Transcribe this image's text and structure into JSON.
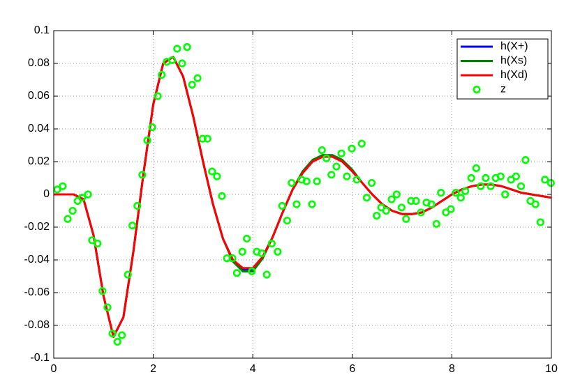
{
  "chart_data": {
    "type": "line",
    "x": [
      0,
      0.2,
      0.4,
      0.6,
      0.8,
      1.0,
      1.2,
      1.4,
      1.6,
      1.8,
      2.0,
      2.2,
      2.4,
      2.6,
      2.8,
      3.0,
      3.2,
      3.4,
      3.6,
      3.8,
      4.0,
      4.2,
      4.4,
      4.6,
      4.8,
      5.0,
      5.2,
      5.4,
      5.6,
      5.8,
      6.0,
      6.2,
      6.4,
      6.6,
      6.8,
      7.0,
      7.2,
      7.4,
      7.6,
      7.8,
      8.0,
      8.2,
      8.4,
      8.6,
      8.8,
      9.0,
      9.2,
      9.4,
      9.6,
      9.8,
      10
    ],
    "series": [
      {
        "name": "h(X+)",
        "color": "#0000ff",
        "values": [
          0,
          0,
          0,
          -0.003,
          -0.025,
          -0.062,
          -0.087,
          -0.075,
          -0.035,
          0.012,
          0.055,
          0.08,
          0.084,
          0.072,
          0.048,
          0.02,
          -0.006,
          -0.027,
          -0.04,
          -0.046,
          -0.046,
          -0.038,
          -0.026,
          -0.011,
          0.003,
          0.013,
          0.02,
          0.023,
          0.023,
          0.02,
          0.014,
          0.007,
          0.0,
          -0.006,
          -0.01,
          -0.012,
          -0.012,
          -0.011,
          -0.008,
          -0.004,
          0.0,
          0.003,
          0.005,
          0.006,
          0.006,
          0.005,
          0.003,
          0.001,
          0.0,
          -0.001,
          -0.002
        ]
      },
      {
        "name": "h(Xs)",
        "color": "#007f00",
        "values": [
          0,
          0,
          0,
          -0.003,
          -0.025,
          -0.062,
          -0.087,
          -0.075,
          -0.035,
          0.012,
          0.055,
          0.08,
          0.084,
          0.072,
          0.048,
          0.02,
          -0.006,
          -0.027,
          -0.041,
          -0.047,
          -0.047,
          -0.039,
          -0.026,
          -0.011,
          0.003,
          0.014,
          0.021,
          0.024,
          0.024,
          0.021,
          0.015,
          0.007,
          0.0,
          -0.006,
          -0.01,
          -0.012,
          -0.012,
          -0.011,
          -0.008,
          -0.004,
          0.0,
          0.003,
          0.005,
          0.006,
          0.006,
          0.005,
          0.003,
          0.001,
          0.0,
          -0.001,
          -0.002
        ]
      },
      {
        "name": "h(Xd)",
        "color": "#ff0000",
        "values": [
          0,
          0,
          0,
          -0.003,
          -0.025,
          -0.062,
          -0.087,
          -0.075,
          -0.035,
          0.012,
          0.055,
          0.08,
          0.084,
          0.072,
          0.048,
          0.02,
          -0.006,
          -0.027,
          -0.04,
          -0.045,
          -0.045,
          -0.038,
          -0.026,
          -0.011,
          0.003,
          0.013,
          0.02,
          0.023,
          0.023,
          0.02,
          0.014,
          0.007,
          0.0,
          -0.006,
          -0.01,
          -0.012,
          -0.012,
          -0.011,
          -0.008,
          -0.004,
          0.0,
          0.003,
          0.005,
          0.006,
          0.006,
          0.005,
          0.003,
          0.001,
          0.0,
          -0.001,
          -0.002
        ]
      },
      {
        "name": "z",
        "color": "#00ff00",
        "type": "scatter",
        "x": [
          0.07,
          0.18,
          0.28,
          0.38,
          0.48,
          0.57,
          0.69,
          0.77,
          0.88,
          0.98,
          1.08,
          1.18,
          1.28,
          1.37,
          1.49,
          1.58,
          1.68,
          1.78,
          1.88,
          1.98,
          2.09,
          2.17,
          2.27,
          2.38,
          2.48,
          2.58,
          2.68,
          2.78,
          2.89,
          2.99,
          3.09,
          3.18,
          3.28,
          3.38,
          3.48,
          3.59,
          3.68,
          3.79,
          3.88,
          3.98,
          4.08,
          4.18,
          4.28,
          4.38,
          4.5,
          4.59,
          4.69,
          4.78,
          4.88,
          4.98,
          5.08,
          5.19,
          5.29,
          5.39,
          5.48,
          5.58,
          5.68,
          5.78,
          5.89,
          5.99,
          6.09,
          6.19,
          6.29,
          6.39,
          6.49,
          6.58,
          6.68,
          6.79,
          6.89,
          6.99,
          7.08,
          7.18,
          7.28,
          7.38,
          7.49,
          7.59,
          7.69,
          7.78,
          7.88,
          7.98,
          8.08,
          8.18,
          8.27,
          8.39,
          8.49,
          8.58,
          8.68,
          8.78,
          8.88,
          8.98,
          9.07,
          9.19,
          9.29,
          9.39,
          9.48,
          9.58,
          9.68,
          9.78,
          9.87,
          9.99
        ],
        "values": [
          0.003,
          0.005,
          -0.015,
          -0.01,
          -0.004,
          -0.002,
          0.0,
          -0.028,
          -0.03,
          -0.059,
          -0.069,
          -0.085,
          -0.09,
          -0.086,
          -0.049,
          -0.019,
          -0.007,
          0.012,
          0.033,
          0.041,
          0.06,
          0.073,
          0.081,
          0.082,
          0.089,
          0.08,
          0.09,
          0.067,
          0.071,
          0.034,
          0.034,
          0.014,
          0.011,
          -0.001,
          -0.039,
          -0.039,
          -0.048,
          -0.035,
          -0.027,
          -0.047,
          -0.035,
          -0.036,
          -0.049,
          -0.03,
          -0.035,
          -0.007,
          -0.016,
          0.007,
          -0.006,
          0.009,
          0.008,
          -0.006,
          0.008,
          0.027,
          0.022,
          0.012,
          0.017,
          0.025,
          0.011,
          0.028,
          0.009,
          0.031,
          -0.002,
          0.007,
          -0.013,
          -0.008,
          -0.01,
          -0.003,
          0.0,
          -0.008,
          -0.015,
          -0.004,
          -0.004,
          -0.011,
          -0.005,
          -0.006,
          -0.018,
          0.001,
          -0.011,
          -0.009,
          0.001,
          -0.002,
          0.002,
          0.01,
          0.016,
          0.005,
          0.01,
          0.005,
          0.01,
          0.011,
          0.0,
          0.009,
          0.011,
          0.005,
          0.021,
          -0.004,
          -0.006,
          -0.017,
          0.009,
          0.007
        ]
      }
    ],
    "xlim": [
      0,
      10
    ],
    "xticks": [
      0,
      2,
      4,
      6,
      8,
      10
    ],
    "ylim": [
      -0.1,
      0.1
    ],
    "yticks": [
      -0.1,
      -0.08,
      -0.06,
      -0.04,
      -0.02,
      0,
      0.02,
      0.04,
      0.06,
      0.08,
      0.1
    ],
    "grid": true,
    "legend": "northeast"
  }
}
